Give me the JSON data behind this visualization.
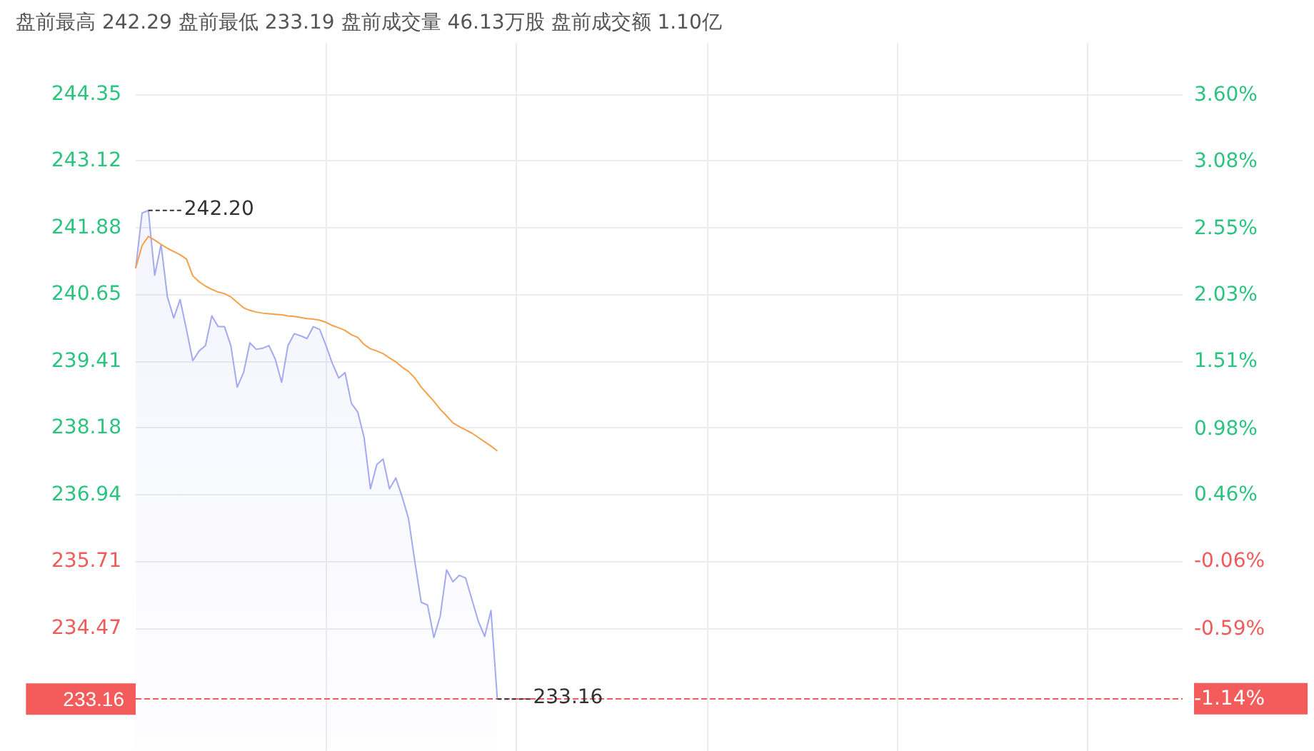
{
  "chart_data": {
    "type": "line",
    "title": "盘前最高 242.29 盘前最低 233.19 盘前成交量 46.13万股 盘前成交额 1.10亿",
    "categories": [
      null,
      null,
      null,
      null,
      null,
      null,
      null,
      null,
      null,
      null,
      null,
      null,
      null,
      null,
      null,
      null,
      null,
      null,
      null,
      null,
      null,
      null,
      null,
      null,
      null,
      null,
      null,
      null,
      null,
      null,
      null,
      null,
      null,
      null,
      null,
      null,
      null,
      null,
      null,
      null,
      null,
      null,
      null,
      null,
      null,
      null,
      null,
      null,
      null,
      null,
      null,
      null,
      null,
      null,
      null,
      null,
      null,
      null,
      null,
      null,
      null,
      null,
      null,
      null,
      null,
      null,
      null,
      null,
      null,
      null,
      null,
      null,
      null,
      null,
      null,
      null,
      null,
      null,
      null,
      null,
      null,
      null,
      null,
      null,
      null,
      null,
      null,
      null,
      null,
      null,
      null,
      null,
      null,
      null,
      null,
      null,
      null,
      null,
      null,
      null,
      null,
      null,
      null,
      null,
      null,
      null,
      null,
      null,
      null,
      null,
      null,
      null,
      null,
      null,
      null,
      null,
      null,
      null,
      null,
      null,
      null,
      null,
      null,
      null,
      null,
      null,
      null,
      null,
      null,
      null,
      null,
      null,
      null,
      null,
      null,
      null,
      null,
      null,
      null,
      null,
      null,
      null,
      null,
      null,
      null,
      null,
      null,
      null,
      null,
      null,
      null,
      null,
      null,
      null,
      null,
      null,
      null,
      null,
      null,
      null,
      null,
      null,
      null,
      null,
      null,
      null
    ],
    "series": [
      {
        "type": "area",
        "color": "#a3a9f0",
        "values": [
          241.13,
          242.15,
          242.2,
          241.0,
          241.57,
          240.6,
          240.21,
          240.55,
          240.0,
          239.42,
          239.6,
          239.7,
          240.25,
          240.05,
          240.05,
          239.7,
          238.93,
          239.2,
          239.75,
          239.63,
          239.65,
          239.7,
          239.45,
          239.02,
          239.7,
          239.92,
          239.88,
          239.83,
          240.05,
          240.0,
          239.7,
          239.37,
          239.1,
          239.2,
          238.63,
          238.47,
          238.0,
          237.05,
          237.5,
          237.6,
          237.05,
          237.25,
          236.9,
          236.5,
          235.7,
          234.95,
          234.9,
          234.3,
          234.7,
          235.55,
          235.33,
          235.45,
          235.4,
          235.0,
          234.6,
          234.32,
          234.8,
          233.16,
          null,
          null,
          null,
          null,
          null,
          null,
          null,
          null,
          null,
          null,
          null,
          null,
          null,
          null,
          null,
          null,
          null,
          null,
          null,
          null,
          null,
          null,
          null,
          null,
          null,
          null,
          null,
          null,
          null,
          null,
          null,
          null,
          null,
          null,
          null,
          null,
          null,
          null,
          null,
          null,
          null,
          null,
          null,
          null,
          null,
          null,
          null,
          null,
          null,
          null,
          null,
          null,
          null,
          null,
          null,
          null,
          null,
          null,
          null,
          null,
          null,
          null,
          null,
          null,
          null,
          null,
          null,
          null,
          null,
          null,
          null,
          null,
          null,
          null,
          null,
          null,
          null,
          null,
          null,
          null,
          null,
          null,
          null,
          null,
          null,
          null,
          null,
          null,
          null,
          null,
          null,
          null,
          null,
          null,
          null,
          null,
          null,
          null,
          null,
          null,
          null,
          null,
          null,
          null,
          null,
          null,
          null,
          null
        ]
      },
      {
        "color": "#f5a04a",
        "values": [
          241.13,
          241.55,
          241.72,
          241.65,
          241.57,
          241.5,
          241.44,
          241.38,
          241.3,
          240.99,
          240.88,
          240.8,
          240.74,
          240.69,
          240.66,
          240.6,
          240.5,
          240.4,
          240.35,
          240.32,
          240.3,
          240.29,
          240.28,
          240.27,
          240.25,
          240.24,
          240.22,
          240.2,
          240.19,
          240.17,
          240.13,
          240.07,
          240.03,
          239.98,
          239.9,
          239.85,
          239.72,
          239.64,
          239.6,
          239.55,
          239.47,
          239.4,
          239.3,
          239.22,
          239.1,
          238.93,
          238.8,
          238.67,
          238.52,
          238.4,
          238.27,
          238.2,
          238.14,
          238.08,
          238.0,
          237.92,
          237.84,
          237.75,
          null,
          null,
          null,
          null,
          null,
          null,
          null,
          null,
          null,
          null,
          null,
          null,
          null,
          null,
          null,
          null,
          null,
          null,
          null,
          null,
          null,
          null,
          null,
          null,
          null,
          null,
          null,
          null,
          null,
          null,
          null,
          null,
          null,
          null,
          null,
          null,
          null,
          null,
          null,
          null,
          null,
          null,
          null,
          null,
          null,
          null,
          null,
          null,
          null,
          null,
          null,
          null,
          null,
          null,
          null,
          null,
          null,
          null,
          null,
          null,
          null,
          null,
          null,
          null,
          null,
          null,
          null,
          null,
          null,
          null,
          null,
          null,
          null,
          null,
          null,
          null,
          null,
          null,
          null,
          null,
          null,
          null,
          null,
          null,
          null,
          null,
          null,
          null,
          null,
          null,
          null,
          null,
          null,
          null,
          null,
          null,
          null,
          null,
          null,
          null,
          null,
          null,
          null,
          null,
          null,
          null,
          null,
          null
        ]
      }
    ],
    "ylim": [
      232.2,
      245.3
    ],
    "yticks": [
      234.47,
      235.71,
      236.94,
      238.18,
      239.41,
      240.65,
      241.88,
      243.12,
      244.35
    ],
    "y2lim": [
      -1.55,
      4.01
    ],
    "y2ticks": [
      {
        "value": -1.14,
        "label": "-1.14%"
      },
      {
        "value": -0.59,
        "label": "-0.59%"
      },
      {
        "value": -0.06,
        "label": "-0.06%"
      },
      {
        "value": 0.46,
        "label": "0.46%"
      },
      {
        "value": 0.98,
        "label": "0.98%"
      },
      {
        "value": 1.51,
        "label": "1.51%"
      },
      {
        "value": 2.03,
        "label": "2.03%"
      },
      {
        "value": 2.55,
        "label": "2.55%"
      },
      {
        "value": 3.08,
        "label": "3.08%"
      },
      {
        "value": 3.6,
        "label": "3.60%"
      }
    ],
    "ref_lines": [
      {
        "axis": "y",
        "value": 233.16,
        "label": "233.16",
        "color": "#f45b5b",
        "line_style": "dashed"
      }
    ],
    "annotations": [
      "242.20",
      {
        "text": "233.16",
        "y": 233.16
      }
    ],
    "grid": true,
    "marker": "none",
    "line_style": "solid"
  }
}
